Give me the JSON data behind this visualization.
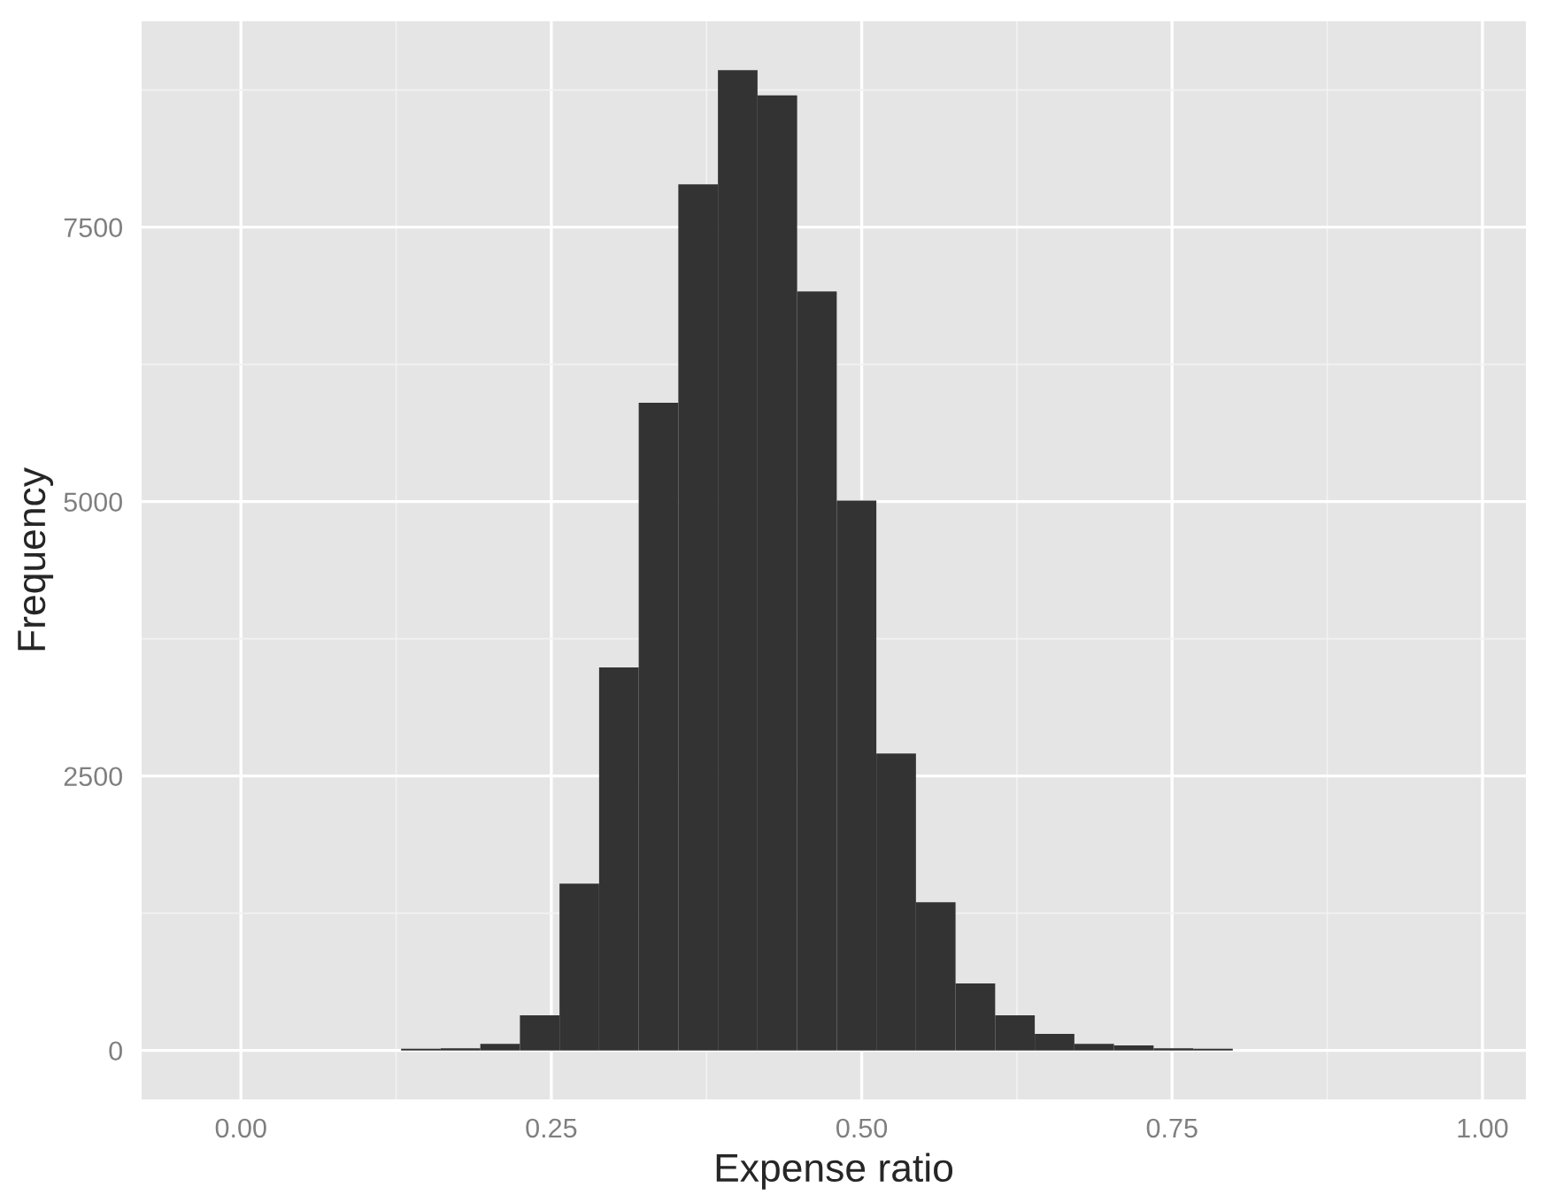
{
  "chart_data": {
    "type": "histogram",
    "xlabel": "Expense ratio",
    "ylabel": "Frequency",
    "color": "#333333",
    "bins": [
      0.129,
      0.1609,
      0.1928,
      0.2247,
      0.2566,
      0.2885,
      0.3204,
      0.3523,
      0.3842,
      0.4161,
      0.448,
      0.4799,
      0.5118,
      0.5437,
      0.5756,
      0.6075,
      0.6394,
      0.6713,
      0.7032,
      0.7351,
      0.767,
      0.7989
    ],
    "values": [
      15,
      20,
      60,
      320,
      1520,
      3490,
      5900,
      7890,
      8930,
      8700,
      6915,
      5010,
      2705,
      1350,
      610,
      320,
      150,
      60,
      45,
      20,
      15
    ],
    "xlim": [
      -0.08,
      1.035
    ],
    "ylim": [
      -446,
      9376
    ],
    "xticks": [
      {
        "value": 0,
        "label": "0.00"
      },
      {
        "value": 0.25,
        "label": "0.25"
      },
      {
        "value": 0.5,
        "label": "0.50"
      },
      {
        "value": 0.75,
        "label": "0.75"
      },
      {
        "value": 1,
        "label": "1.00"
      }
    ],
    "yticks": [
      0,
      2500,
      5000,
      7500
    ],
    "grid": true,
    "legend": false
  }
}
